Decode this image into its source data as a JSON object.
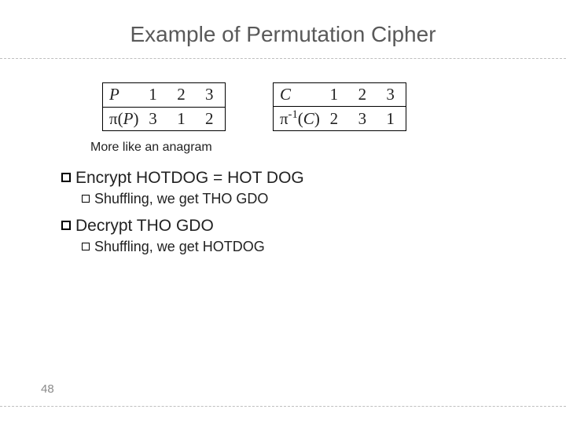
{
  "title": "Example of Permutation Cipher",
  "table1": {
    "row1_label": "P",
    "row2_label_prefix": "π(",
    "row2_label_var": "P",
    "row2_label_suffix": ")",
    "r1": [
      "1",
      "2",
      "3"
    ],
    "r2": [
      "3",
      "1",
      "2"
    ]
  },
  "table2": {
    "row1_label": "C",
    "row2_label_prefix": "π",
    "row2_label_sup": "-1",
    "row2_label_open": "(",
    "row2_label_var": "C",
    "row2_label_close": ")",
    "r1": [
      "1",
      "2",
      "3"
    ],
    "r2": [
      "2",
      "3",
      "1"
    ]
  },
  "note": "More like an anagram",
  "line1": "Encrypt HOTDOG = HOT DOG",
  "sub1": "Shuffling, we get THO GDO",
  "line2": "Decrypt THO GDO",
  "sub2": "Shuffling, we get HOTDOG",
  "pageNum": "48",
  "colors": {
    "title": "#595959",
    "text": "#222222",
    "dash": "#bfbfbf",
    "pagenum": "#8a8a8a",
    "bg": "#ffffff"
  }
}
